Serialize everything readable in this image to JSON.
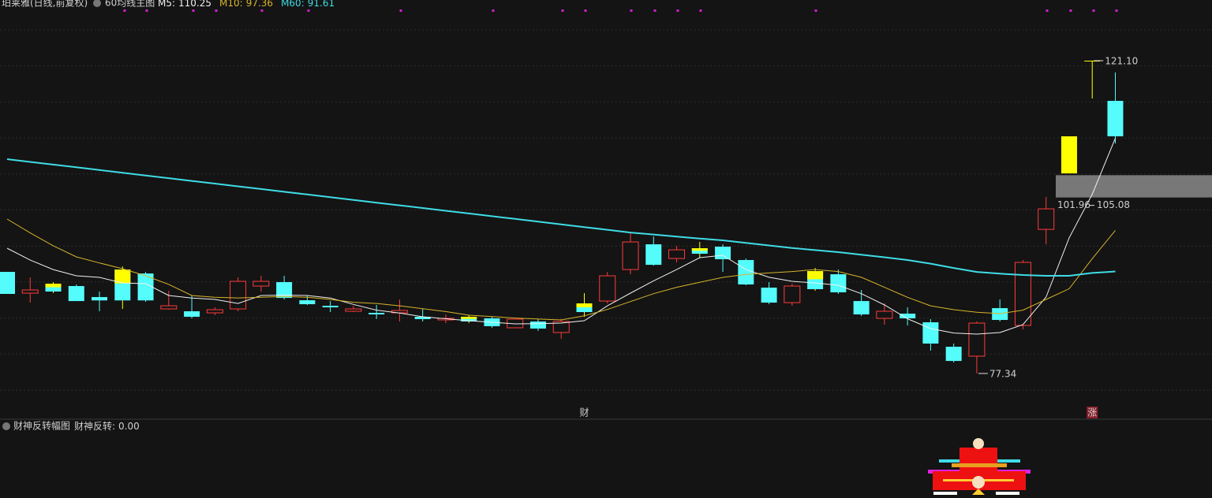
{
  "chart_data": {
    "type": "candlestick",
    "title": "珀莱雅(日线,前复权)",
    "indicator": "60均线主图",
    "ylim": [
      70.94,
      129.59
    ],
    "up_color": "#ff3b3b",
    "down_color": "#54fcfc",
    "colors": [
      "#54fcfc",
      "#ff3b3b",
      "#ffff00",
      "#54fcfc",
      "#54fcfc",
      "#ffff00",
      "#54fcfc",
      "#ff3b3b",
      "#54fcfc",
      "#ff3b3b",
      "#ff3b3b",
      "#ff3b3b",
      "#54fcfc",
      "#54fcfc",
      "#54fcfc",
      "#ff3b3b",
      "#54fcfc",
      "#ff3b3b",
      "#54fcfc",
      "#ff3b3b",
      "#ffff00",
      "#54fcfc",
      "#ff3b3b",
      "#54fcfc",
      "#ff3b3b",
      "#ffff00",
      "#ff3b3b",
      "#ff3b3b",
      "#54fcfc",
      "#ff3b3b",
      "#ffff00",
      "#54fcfc",
      "#54fcfc",
      "#54fcfc",
      "#ff3b3b",
      "#ffff00",
      "#54fcfc",
      "#54fcfc",
      "#ff3b3b",
      "#54fcfc",
      "#54fcfc",
      "#54fcfc",
      "#ff3b3b",
      "#54fcfc",
      "#ff3b3b",
      "#ff3b3b",
      "#ffff00",
      "#ffff00",
      "#54fcfc"
    ],
    "open": [
      91.55,
      88.58,
      89.9,
      89.57,
      88.03,
      91.88,
      91.33,
      86.37,
      86.04,
      85.82,
      86.37,
      89.57,
      90.12,
      87.58,
      86.81,
      86.04,
      85.82,
      85.82,
      85.27,
      84.83,
      85.27,
      85.05,
      83.73,
      84.61,
      83.07,
      87.14,
      87.47,
      91.88,
      95.41,
      93.43,
      94.86,
      95.08,
      93.21,
      89.35,
      87.25,
      91.66,
      91.22,
      87.47,
      85.05,
      85.71,
      84.5,
      81.08,
      79.76,
      86.48,
      84.06,
      97.5,
      105.33,
      121.1,
      115.48
    ],
    "high": [
      91.55,
      90.78,
      90.12,
      89.79,
      88.8,
      92.32,
      91.55,
      88.91,
      88.25,
      86.59,
      90.78,
      91.0,
      91.0,
      88.25,
      87.47,
      86.81,
      86.92,
      87.69,
      86.37,
      85.6,
      85.49,
      85.27,
      84.94,
      84.94,
      84.94,
      88.58,
      91.55,
      97.06,
      96.51,
      95.19,
      95.74,
      95.41,
      93.43,
      90.12,
      89.9,
      92.1,
      91.88,
      89.02,
      87.14,
      86.59,
      84.94,
      81.52,
      84.61,
      87.69,
      93.21,
      102.03,
      110.52,
      121.1,
      119.45
    ],
    "low": [
      88.47,
      87.25,
      88.58,
      87.47,
      86.04,
      86.37,
      87.36,
      86.26,
      85.05,
      85.49,
      86.04,
      88.8,
      87.69,
      86.92,
      85.93,
      85.93,
      84.96,
      84.61,
      84.61,
      84.39,
      84.39,
      83.73,
      83.73,
      83.29,
      82.18,
      85.27,
      87.14,
      91.22,
      92.43,
      92.88,
      93.54,
      91.55,
      89.68,
      87.03,
      86.81,
      88.91,
      88.47,
      85.38,
      84.17,
      84.06,
      80.53,
      78.87,
      77.34,
      84.61,
      83.51,
      95.41,
      105.33,
      115.81,
      109.52
    ],
    "close": [
      88.47,
      89.02,
      88.8,
      87.47,
      87.56,
      87.56,
      87.56,
      86.81,
      85.27,
      86.26,
      90.23,
      90.23,
      87.91,
      87.03,
      86.59,
      86.37,
      85.6,
      86.15,
      84.94,
      85.05,
      84.61,
      83.95,
      84.94,
      83.62,
      84.61,
      85.93,
      91.0,
      95.74,
      92.54,
      94.64,
      94.09,
      93.32,
      89.79,
      87.25,
      89.57,
      89.13,
      88.69,
      85.6,
      86.04,
      85.05,
      81.52,
      79.09,
      84.39,
      84.83,
      92.88,
      100.37,
      110.52,
      121.1,
      110.52
    ],
    "series": [
      {
        "name": "M5:",
        "color": "#f0f0f0",
        "values": [
          94.86,
          93.2,
          91.88,
          91.0,
          90.78,
          90.0,
          89.9,
          88.25,
          87.9,
          87.7,
          87.14,
          88.25,
          88.3,
          88.25,
          87.9,
          87.0,
          86.2,
          85.8,
          85.27,
          85.0,
          84.72,
          84.5,
          84.28,
          84.3,
          84.39,
          84.72,
          86.8,
          88.58,
          90.3,
          91.88,
          93.54,
          93.87,
          91.88,
          90.8,
          90.23,
          90.0,
          89.68,
          88.5,
          86.92,
          85.0,
          83.62,
          83.0,
          82.85,
          83.07,
          84.17,
          88.03,
          96.32,
          102.4,
          110.25
        ]
      },
      {
        "name": "M10:",
        "color": "#d8b42a",
        "values": [
          98.94,
          97.0,
          95.2,
          93.65,
          92.8,
          92.0,
          91.0,
          89.8,
          88.25,
          88.0,
          87.91,
          88.0,
          88.1,
          88.0,
          87.7,
          87.3,
          87.14,
          86.8,
          86.4,
          86.0,
          85.49,
          85.3,
          85.1,
          84.95,
          84.83,
          85.4,
          86.3,
          87.4,
          88.5,
          89.4,
          90.1,
          90.78,
          91.2,
          91.4,
          91.6,
          91.88,
          91.6,
          90.8,
          89.4,
          88.0,
          86.8,
          86.26,
          85.9,
          85.71,
          86.2,
          87.7,
          89.2,
          93.4,
          97.36
        ]
      },
      {
        "name": "M60:",
        "color": "#3fdce6",
        "values": [
          107.32,
          106.94,
          106.56,
          106.18,
          105.8,
          105.42,
          105.04,
          104.66,
          104.28,
          103.9,
          103.52,
          103.14,
          102.76,
          102.38,
          102.0,
          101.62,
          101.24,
          100.86,
          100.48,
          100.1,
          99.72,
          99.34,
          98.96,
          98.58,
          98.2,
          97.82,
          97.44,
          97.06,
          96.78,
          96.5,
          96.22,
          95.96,
          95.6,
          95.25,
          94.9,
          94.6,
          94.31,
          93.95,
          93.6,
          93.21,
          92.7,
          92.1,
          91.55,
          91.3,
          91.11,
          91.0,
          91.0,
          91.4,
          91.61
        ]
      }
    ],
    "annotations": [
      {
        "value": 121.1,
        "label": "121.10",
        "index": 47
      },
      {
        "value": 77.34,
        "label": "77.34",
        "index": 42
      }
    ],
    "band": {
      "low": 101.96,
      "high": 105.08
    },
    "markers": [
      null,
      null,
      null,
      null,
      null,
      null,
      null,
      null,
      null,
      null,
      null,
      null,
      null,
      null,
      null,
      null,
      null,
      null,
      null,
      null,
      null,
      null,
      null,
      null,
      null,
      "财",
      null,
      null,
      null,
      null,
      null,
      null,
      null,
      null,
      null,
      null,
      null,
      null,
      null,
      null,
      null,
      null,
      null,
      null,
      null,
      null,
      null,
      "涨",
      null
    ],
    "sub_chart": {
      "title": "财神反转幅图",
      "indicator": "财神反转:",
      "value": 0.0,
      "value_label": "0.00"
    }
  }
}
